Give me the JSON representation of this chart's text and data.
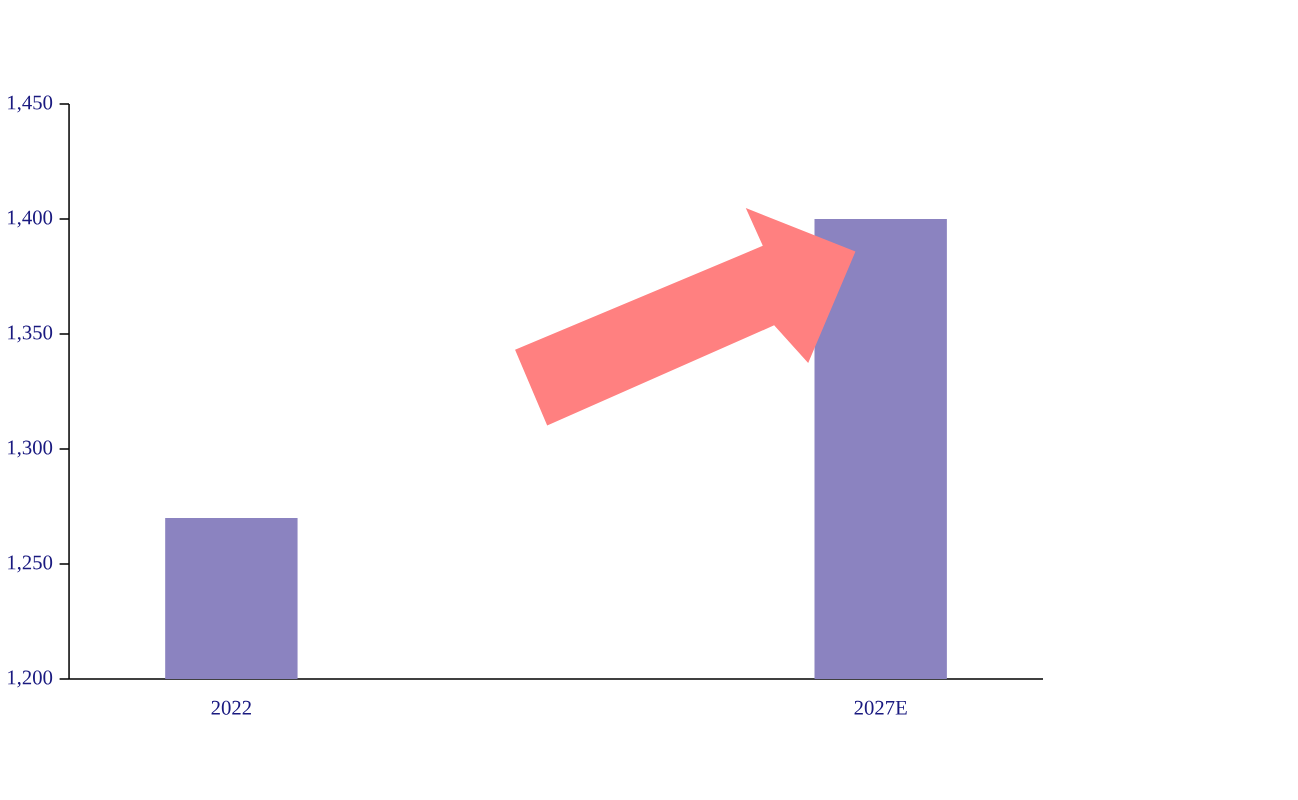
{
  "chart_data": {
    "type": "bar",
    "categories": [
      "2022",
      "2027E"
    ],
    "values": [
      1270,
      1400
    ],
    "color": "#8b83c0",
    "ylim": [
      1200,
      1450
    ],
    "yticks": [
      {
        "value": 1200,
        "label": "1,200"
      },
      {
        "value": 1250,
        "label": "1,250"
      },
      {
        "value": 1300,
        "label": "1,300"
      },
      {
        "value": 1350,
        "label": "1,350"
      },
      {
        "value": 1400,
        "label": "1,400"
      },
      {
        "value": 1450,
        "label": "1,450"
      }
    ],
    "grid": false
  }
}
